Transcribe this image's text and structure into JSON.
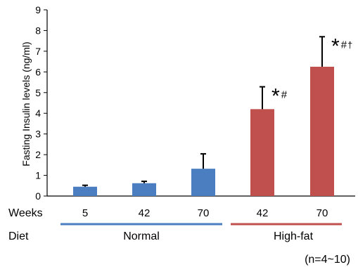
{
  "chart_data": {
    "type": "bar",
    "ylabel": "Fasting Insulin levels (ng/ml)",
    "ylim": [
      0,
      9
    ],
    "yticks": [
      0,
      1,
      2,
      3,
      4,
      5,
      6,
      7,
      8,
      9
    ],
    "row_labels": {
      "weeks": "Weeks",
      "diet": "Diet"
    },
    "groups": [
      {
        "label": "Normal",
        "color": "#4a7ec0"
      },
      {
        "label": "High-fat",
        "color": "#c0504d"
      }
    ],
    "bars": [
      {
        "week": "5",
        "group": 0,
        "value": 0.45,
        "error": 0.07,
        "annotation": ""
      },
      {
        "week": "42",
        "group": 0,
        "value": 0.62,
        "error": 0.09,
        "annotation": ""
      },
      {
        "week": "70",
        "group": 0,
        "value": 1.32,
        "error": 0.72,
        "annotation": ""
      },
      {
        "week": "42",
        "group": 1,
        "value": 4.2,
        "error": 1.08,
        "annotation": "*#"
      },
      {
        "week": "70",
        "group": 1,
        "value": 6.25,
        "error": 1.45,
        "annotation": "*#†"
      }
    ],
    "note": "(n=4~10)"
  }
}
